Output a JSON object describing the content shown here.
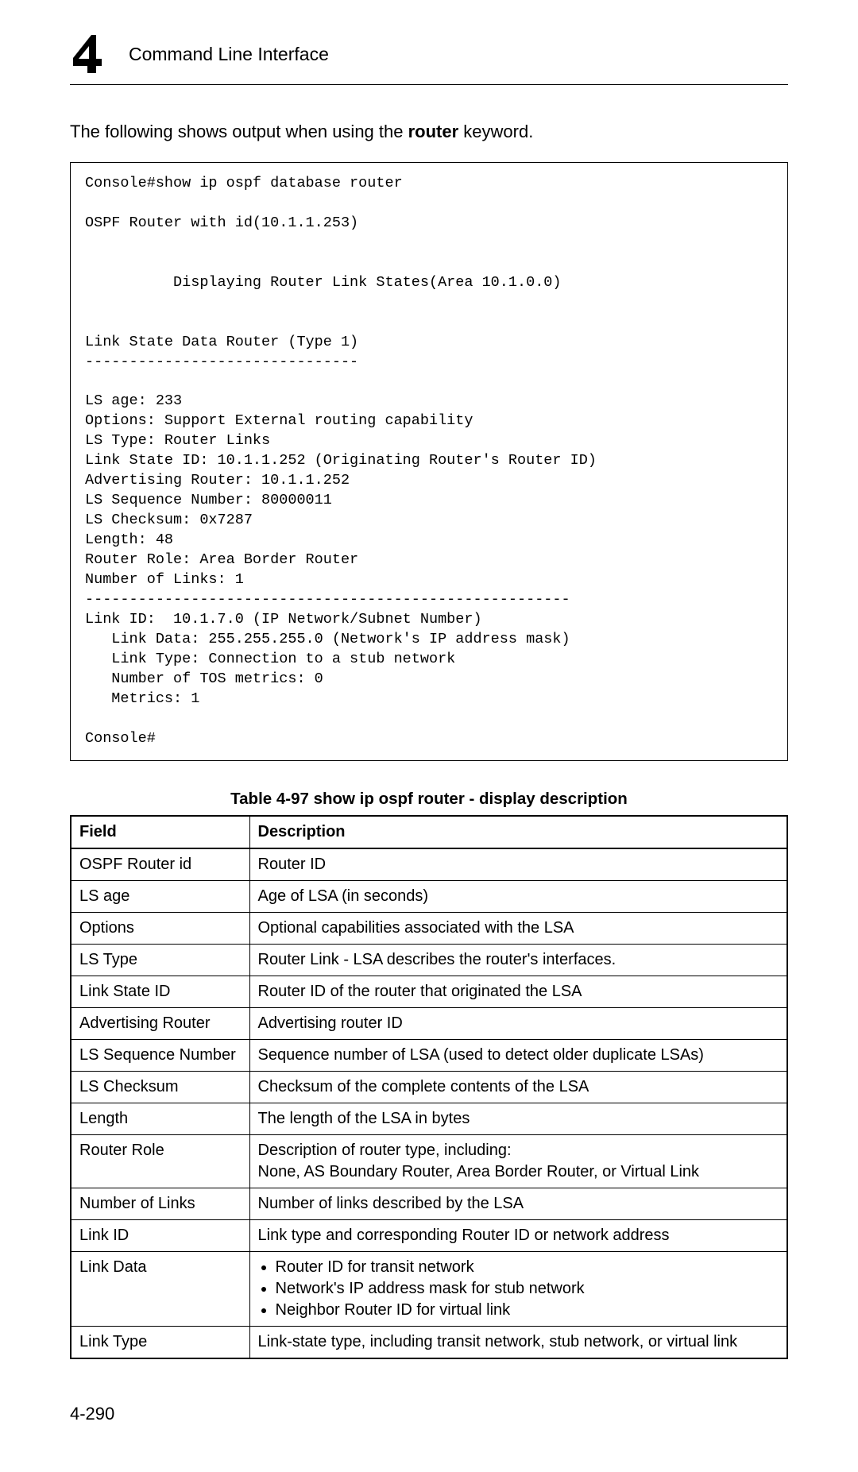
{
  "header": {
    "chapter_number": "4",
    "title": "Command Line Interface"
  },
  "intro": {
    "prefix": "The following shows output when using the ",
    "keyword": "router",
    "suffix": " keyword."
  },
  "console_output": "Console#show ip ospf database router\n\nOSPF Router with id(10.1.1.253)\n\n\n          Displaying Router Link States(Area 10.1.0.0)\n\n\nLink State Data Router (Type 1)\n-------------------------------\n\nLS age: 233\nOptions: Support External routing capability\nLS Type: Router Links\nLink State ID: 10.1.1.252 (Originating Router's Router ID)\nAdvertising Router: 10.1.1.252\nLS Sequence Number: 80000011\nLS Checksum: 0x7287\nLength: 48\nRouter Role: Area Border Router\nNumber of Links: 1\n-------------------------------------------------------\nLink ID:  10.1.7.0 (IP Network/Subnet Number)\n   Link Data: 255.255.255.0 (Network's IP address mask)\n   Link Type: Connection to a stub network\n   Number of TOS metrics: 0\n   Metrics: 1\n\nConsole#",
  "table": {
    "caption": "Table 4-97   show ip ospf router - display description",
    "columns": [
      "Field",
      "Description"
    ],
    "rows": [
      {
        "field": "OSPF Router id",
        "desc": "Router ID"
      },
      {
        "field": "LS age",
        "desc": "Age of LSA (in seconds)"
      },
      {
        "field": "Options",
        "desc": "Optional capabilities associated with the LSA"
      },
      {
        "field": "LS Type",
        "desc": "Router Link - LSA describes the router's interfaces."
      },
      {
        "field": "Link State ID",
        "desc": "Router ID of the router that originated the LSA"
      },
      {
        "field": "Advertising Router",
        "desc": "Advertising router ID"
      },
      {
        "field": "LS Sequence Number",
        "desc": "Sequence number of LSA (used to detect older duplicate LSAs)"
      },
      {
        "field": "LS Checksum",
        "desc": "Checksum of the complete contents of the LSA"
      },
      {
        "field": "Length",
        "desc": "The length of the LSA in bytes"
      },
      {
        "field": "Router Role",
        "desc": "Description of router type, including:\nNone, AS Boundary Router, Area Border Router, or Virtual Link"
      },
      {
        "field": "Number of Links",
        "desc": "Number of links described by the LSA"
      },
      {
        "field": "Link ID",
        "desc": "Link type and corresponding Router ID or network address"
      },
      {
        "field": "Link Data",
        "bullets": [
          "Router ID for transit network",
          "Network's IP address mask for stub network",
          "Neighbor Router ID for virtual link"
        ]
      },
      {
        "field": "Link Type",
        "desc": "Link-state type, including transit network, stub network, or virtual link"
      }
    ]
  },
  "page_number": "4-290",
  "colors": {
    "text": "#000000",
    "background": "#ffffff",
    "border": "#000000"
  }
}
